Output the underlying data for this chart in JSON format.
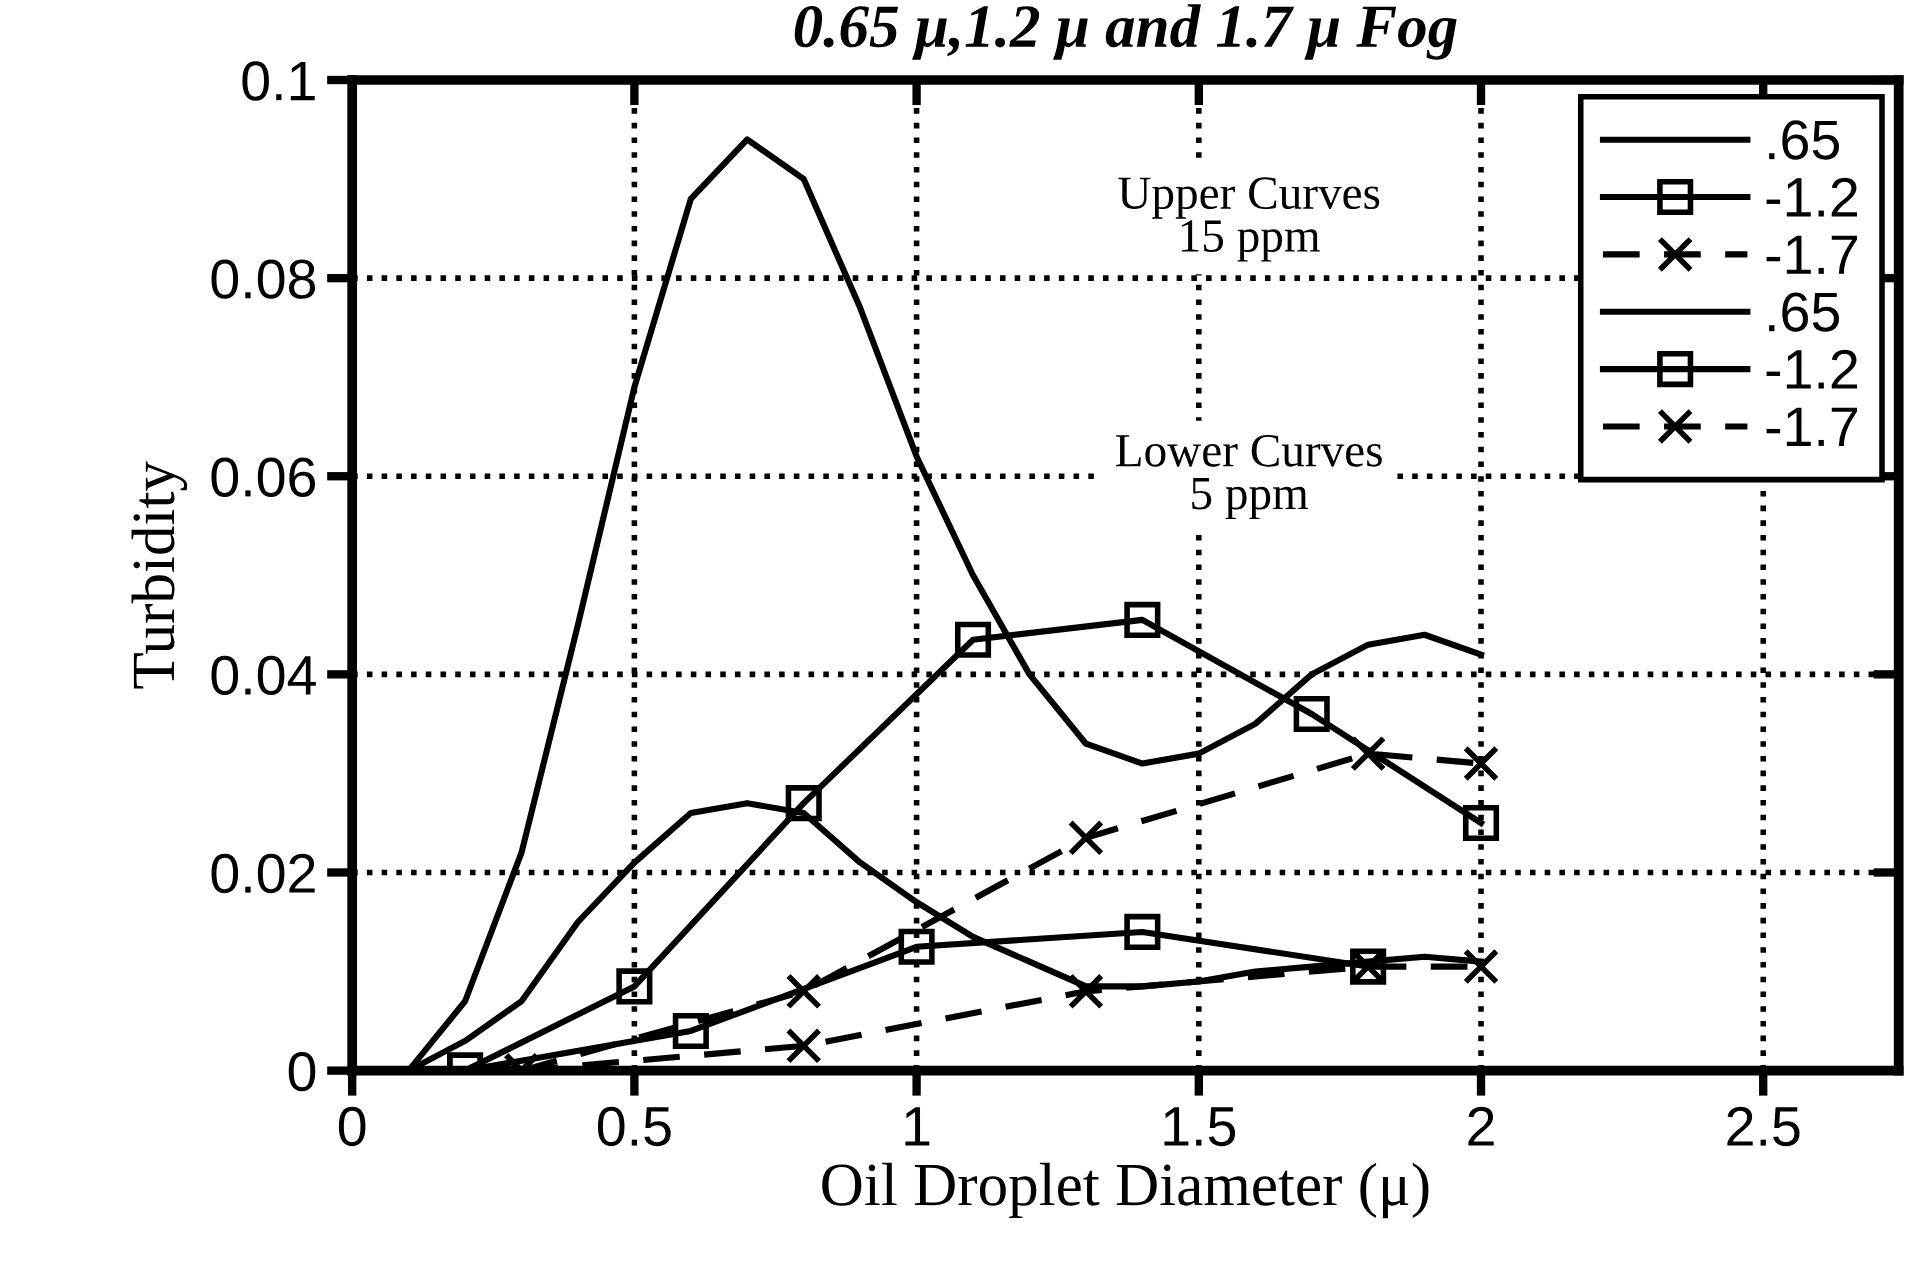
{
  "chart_data": {
    "type": "line",
    "title": "0.65 μ,1.2 μ and 1.7 μ Fog",
    "xlabel": "Oil Droplet Diameter (μ)",
    "ylabel": "Turbidity",
    "xlim": [
      0,
      2.74
    ],
    "xticks": [
      0,
      0.5,
      1,
      1.5,
      2,
      2.5
    ],
    "ylim": [
      0,
      0.1
    ],
    "yticks": [
      0,
      0.02,
      0.04,
      0.06,
      0.08,
      0.1
    ],
    "grid": true,
    "legend": "top right",
    "annotations": [
      "Upper Curves\n15 ppm",
      "Lower Curves\n5 ppm"
    ],
    "series": [
      {
        "name": ".65",
        "color": "#000000",
        "line_style": "solid",
        "marker": "none",
        "x": [
          0.1,
          0.2,
          0.3,
          0.4,
          0.5,
          0.6,
          0.7,
          0.8,
          0.9,
          1.0,
          1.1,
          1.2,
          1.3,
          1.4,
          1.5,
          1.6,
          1.7,
          1.8,
          1.9,
          2.0
        ],
        "values": [
          0,
          0.007,
          0.022,
          0.045,
          0.069,
          0.088,
          0.094,
          0.09,
          0.077,
          0.062,
          0.05,
          0.04,
          0.033,
          0.031,
          0.032,
          0.035,
          0.04,
          0.043,
          0.044,
          0.042
        ]
      },
      {
        "name": "-1.2",
        "color": "#000000",
        "line_style": "solid",
        "marker": "square",
        "x": [
          0.2,
          0.5,
          0.8,
          1.1,
          1.4,
          1.7,
          2.0
        ],
        "values": [
          0,
          0.0085,
          0.027,
          0.0435,
          0.0455,
          0.036,
          0.025
        ]
      },
      {
        "name": "-1.7",
        "color": "#000000",
        "line_style": "dashed",
        "marker": "cross",
        "x": [
          0.3,
          0.8,
          1.3,
          1.8,
          2.0
        ],
        "values": [
          0,
          0.008,
          0.0235,
          0.032,
          0.031
        ]
      },
      {
        "name": ".65",
        "color": "#000000",
        "line_style": "solid",
        "marker": "none",
        "x": [
          0.1,
          0.2,
          0.3,
          0.4,
          0.5,
          0.6,
          0.7,
          0.8,
          0.9,
          1.0,
          1.1,
          1.2,
          1.3,
          1.4,
          1.5,
          1.6,
          1.7,
          1.8,
          1.9,
          2.0
        ],
        "values": [
          0,
          0.003,
          0.007,
          0.015,
          0.021,
          0.026,
          0.027,
          0.026,
          0.021,
          0.017,
          0.0135,
          0.011,
          0.0085,
          0.0085,
          0.009,
          0.01,
          0.0105,
          0.011,
          0.0115,
          0.011
        ]
      },
      {
        "name": "-1.2",
        "color": "#000000",
        "line_style": "solid",
        "marker": "square",
        "x": [
          0.2,
          0.6,
          1.0,
          1.4,
          1.8
        ],
        "values": [
          0,
          0.004,
          0.0125,
          0.014,
          0.0105
        ]
      },
      {
        "name": "-1.7",
        "color": "#000000",
        "line_style": "dashed",
        "marker": "cross",
        "x": [
          0.3,
          0.8,
          1.3,
          1.8,
          2.0
        ],
        "values": [
          0,
          0.0025,
          0.008,
          0.0105,
          0.0105
        ]
      }
    ]
  }
}
